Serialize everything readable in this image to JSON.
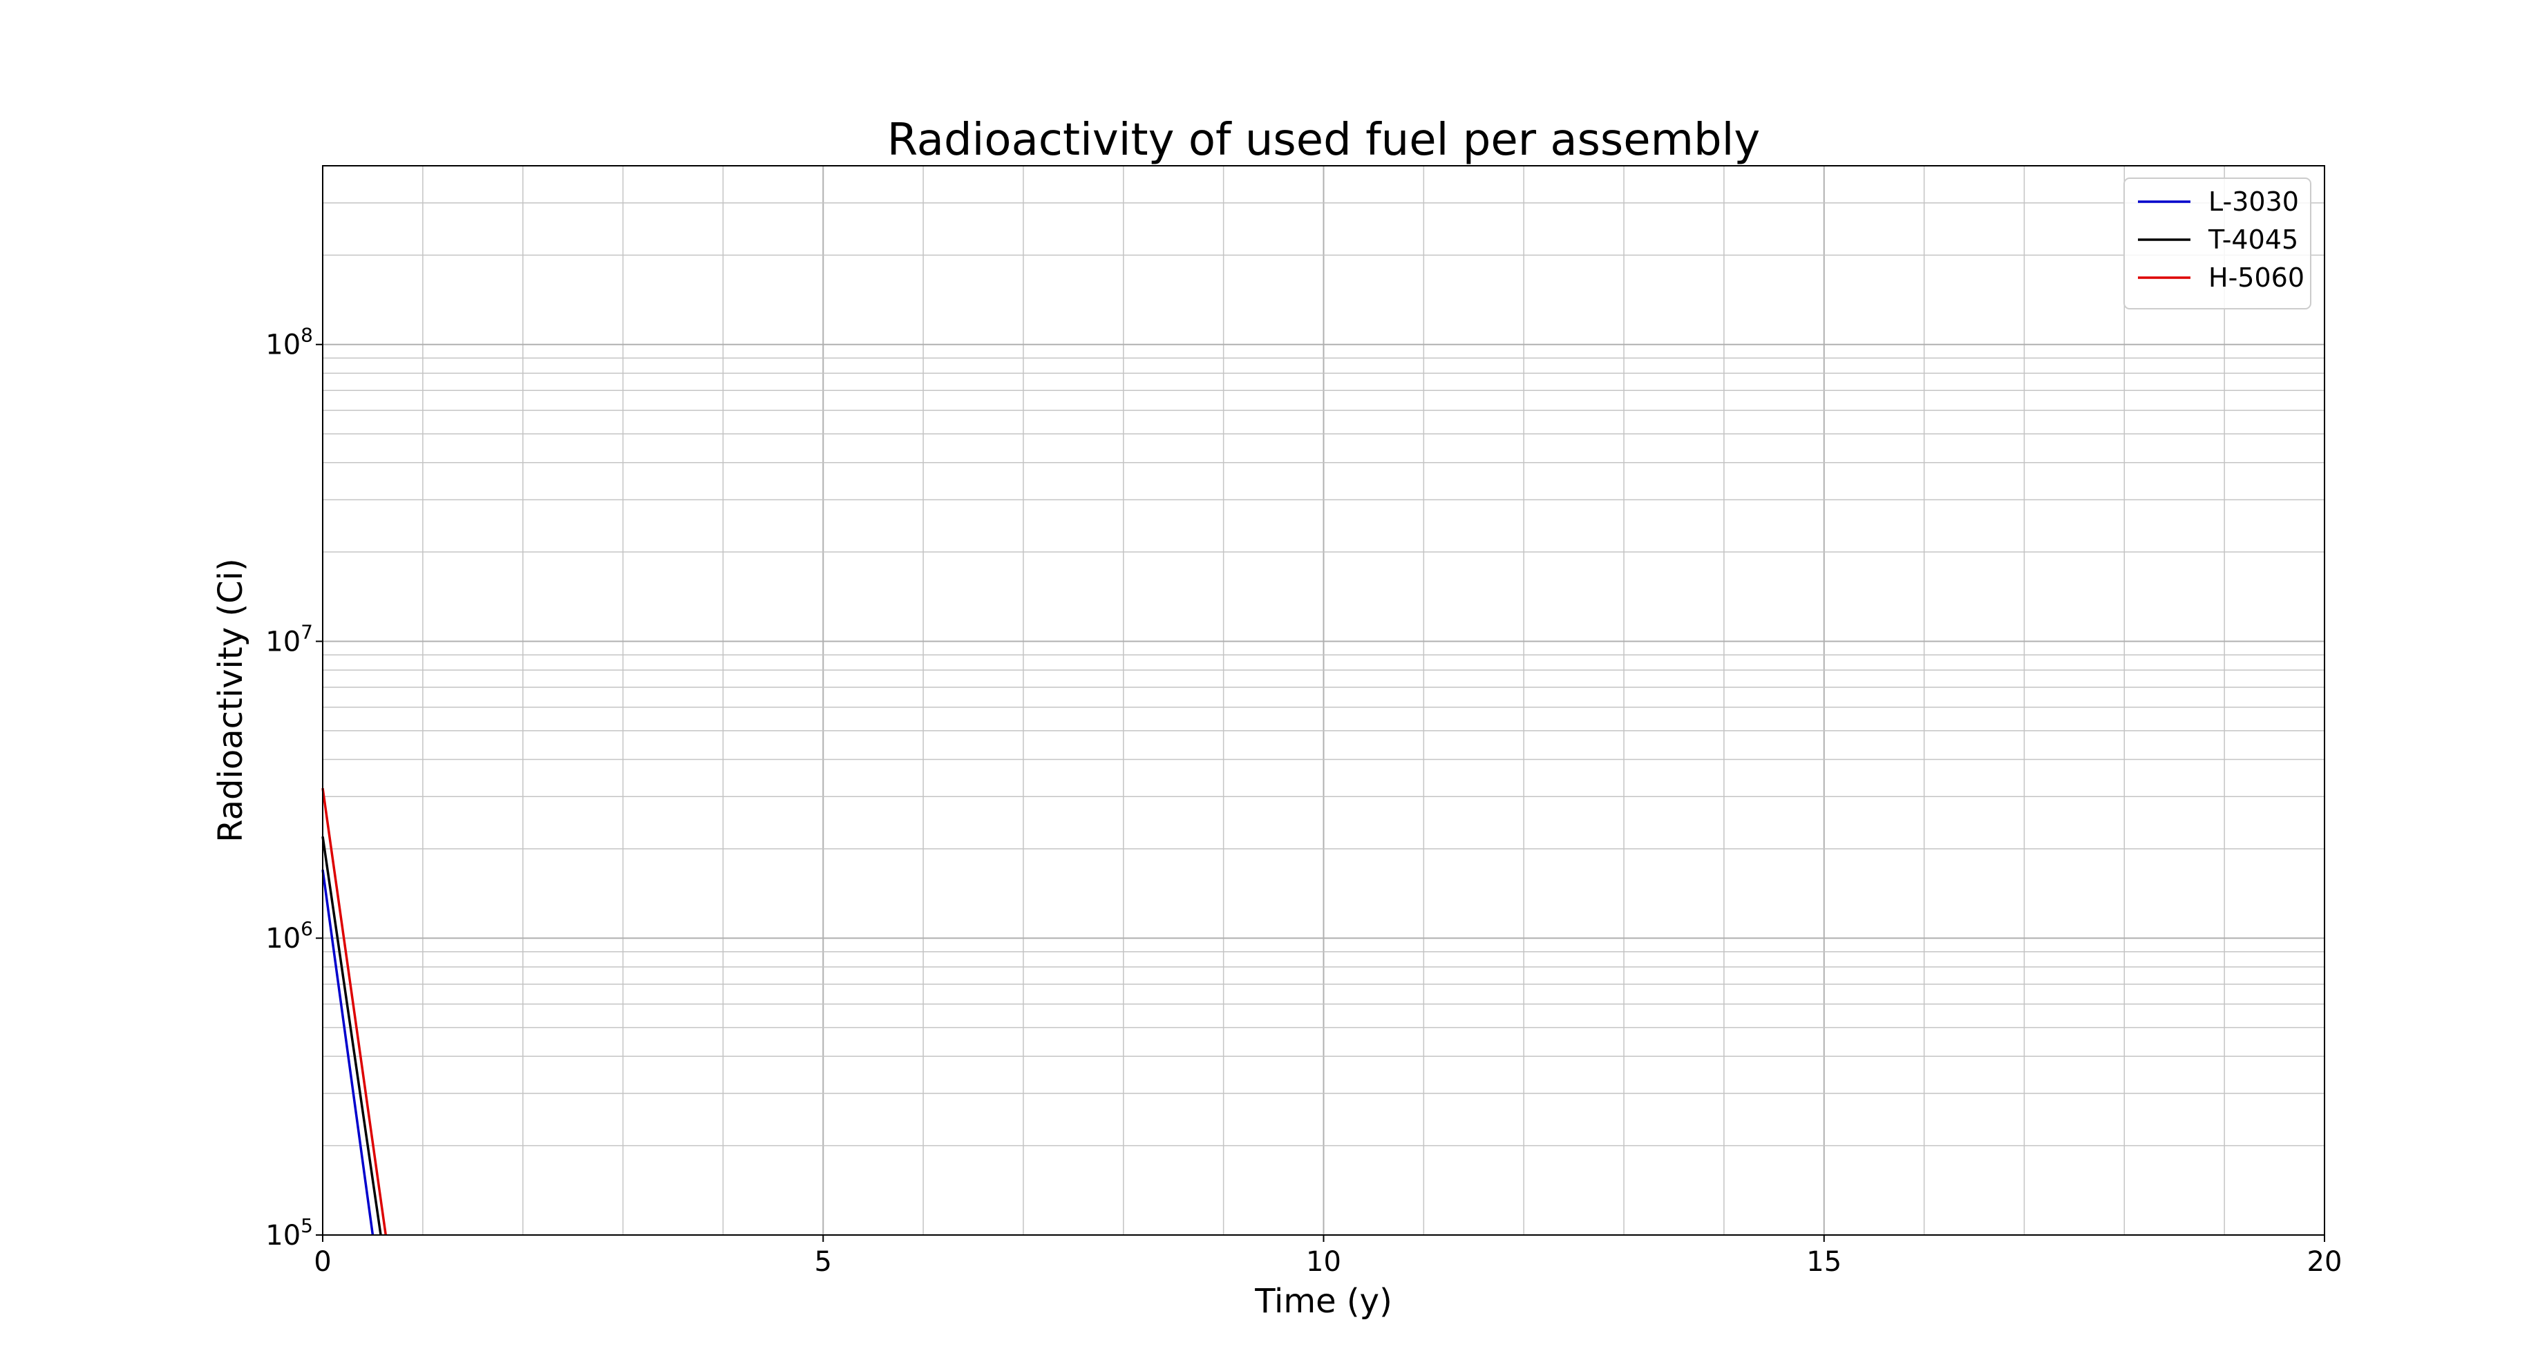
{
  "chart_data": {
    "type": "line",
    "title": "Radioactivity of used fuel per assembly",
    "xlabel": "Time (y)",
    "ylabel": "Radioactivity (Ci)",
    "xlim": [
      0,
      20
    ],
    "ylim": [
      100000,
      400000000
    ],
    "yscale": "log",
    "grid": true,
    "grid_minor": true,
    "legend_position": "top-right",
    "x_ticks": [
      0,
      5,
      10,
      15,
      20
    ],
    "x_tick_labels": [
      "0",
      "5",
      "10",
      "15",
      "20"
    ],
    "y_ticks": [
      100000,
      1000000,
      10000000,
      100000000
    ],
    "y_tick_labels": [
      {
        "base": "10",
        "exp": "5"
      },
      {
        "base": "10",
        "exp": "6"
      },
      {
        "base": "10",
        "exp": "7"
      },
      {
        "base": "10",
        "exp": "8"
      }
    ],
    "series": [
      {
        "name": "L-3030",
        "color": "#0000cc",
        "x": [
          0,
          0.5
        ],
        "y": [
          1700000,
          100000
        ]
      },
      {
        "name": "T-4045",
        "color": "#000000",
        "x": [
          0,
          0.58
        ],
        "y": [
          2200000,
          100000
        ]
      },
      {
        "name": "H-5060",
        "color": "#dd0000",
        "x": [
          0,
          0.63
        ],
        "y": [
          3200000,
          100000
        ]
      }
    ]
  }
}
